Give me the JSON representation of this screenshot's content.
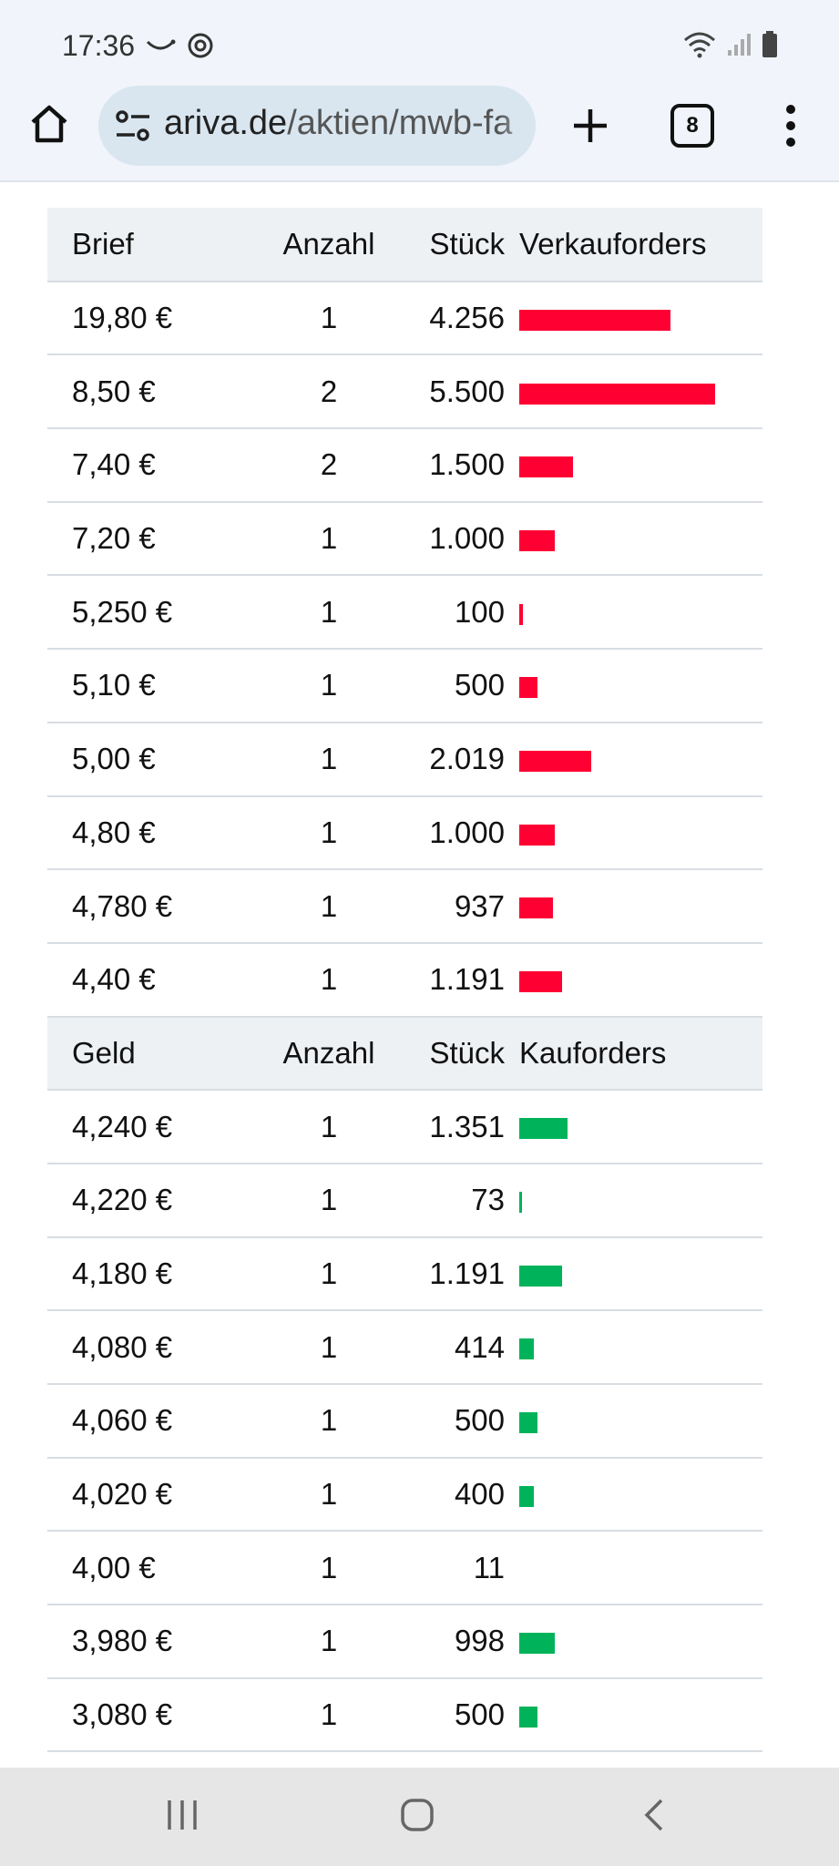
{
  "status_bar": {
    "time": "17:36",
    "icons_left": [
      "whatsapp-smile-icon",
      "sync-icon"
    ],
    "icons_right": [
      "wifi-icon",
      "signal-icon",
      "battery-icon"
    ]
  },
  "browser": {
    "url_domain": "ariva.de",
    "url_path": "/aktien/mwb-fa",
    "tab_count": "8"
  },
  "colors": {
    "sell_bar": "#ff0033",
    "buy_bar": "#00b35a",
    "header_bg": "#eef1f4"
  },
  "order_book": {
    "max_pieces": 5500,
    "sell_header": {
      "price": "Brief",
      "count": "Anzahl",
      "pieces": "Stück",
      "bar": "Verkauforders"
    },
    "sell_orders": [
      {
        "price": "19,80 €",
        "count": "1",
        "pieces": "4.256",
        "qty": 4256
      },
      {
        "price": "8,50 €",
        "count": "2",
        "pieces": "5.500",
        "qty": 5500
      },
      {
        "price": "7,40 €",
        "count": "2",
        "pieces": "1.500",
        "qty": 1500
      },
      {
        "price": "7,20 €",
        "count": "1",
        "pieces": "1.000",
        "qty": 1000
      },
      {
        "price": "5,250 €",
        "count": "1",
        "pieces": "100",
        "qty": 100
      },
      {
        "price": "5,10 €",
        "count": "1",
        "pieces": "500",
        "qty": 500
      },
      {
        "price": "5,00 €",
        "count": "1",
        "pieces": "2.019",
        "qty": 2019
      },
      {
        "price": "4,80 €",
        "count": "1",
        "pieces": "1.000",
        "qty": 1000
      },
      {
        "price": "4,780 €",
        "count": "1",
        "pieces": "937",
        "qty": 937
      },
      {
        "price": "4,40 €",
        "count": "1",
        "pieces": "1.191",
        "qty": 1191
      }
    ],
    "buy_header": {
      "price": "Geld",
      "count": "Anzahl",
      "pieces": "Stück",
      "bar": "Kauforders"
    },
    "buy_orders": [
      {
        "price": "4,240 €",
        "count": "1",
        "pieces": "1.351",
        "qty": 1351
      },
      {
        "price": "4,220 €",
        "count": "1",
        "pieces": "73",
        "qty": 73
      },
      {
        "price": "4,180 €",
        "count": "1",
        "pieces": "1.191",
        "qty": 1191
      },
      {
        "price": "4,080 €",
        "count": "1",
        "pieces": "414",
        "qty": 414
      },
      {
        "price": "4,060 €",
        "count": "1",
        "pieces": "500",
        "qty": 500
      },
      {
        "price": "4,020 €",
        "count": "1",
        "pieces": "400",
        "qty": 400
      },
      {
        "price": "4,00 €",
        "count": "1",
        "pieces": "11",
        "qty": 11
      },
      {
        "price": "3,980 €",
        "count": "1",
        "pieces": "998",
        "qty": 998
      },
      {
        "price": "3,080 €",
        "count": "1",
        "pieces": "500",
        "qty": 500
      }
    ]
  },
  "nav_bar": {
    "buttons": [
      "recent-apps-icon",
      "home-circle-icon",
      "back-icon"
    ]
  }
}
